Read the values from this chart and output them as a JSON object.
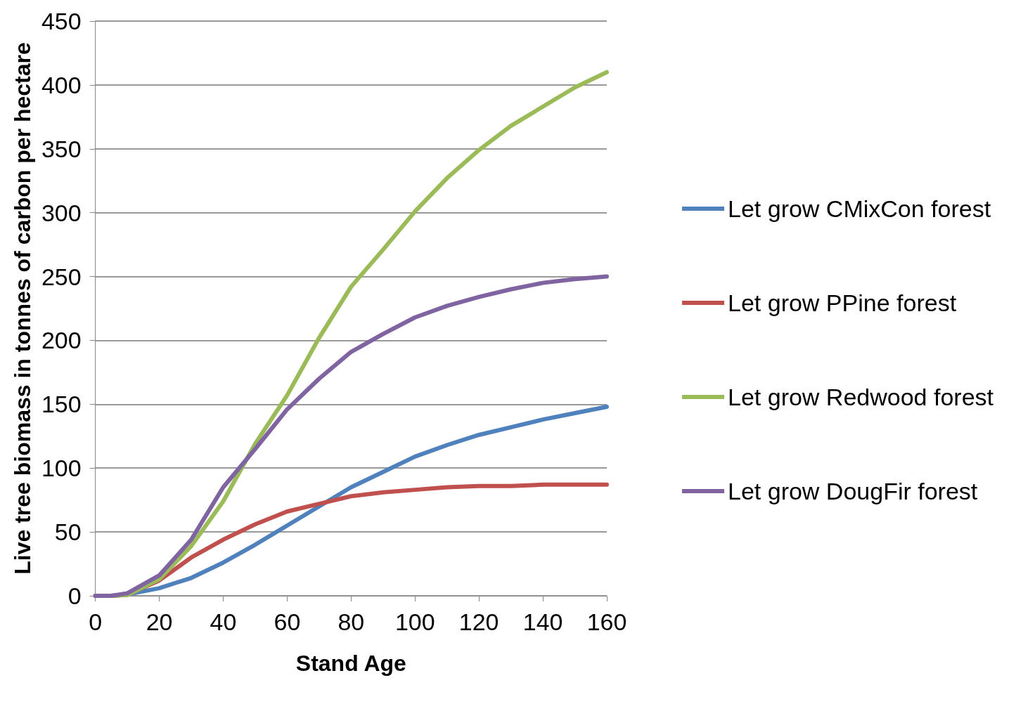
{
  "chart_data": {
    "type": "line",
    "xlabel": "Stand Age",
    "ylabel": "Live tree biomass in tonnes of carbon per hectare",
    "x": [
      0,
      5,
      10,
      20,
      30,
      40,
      50,
      60,
      70,
      80,
      90,
      100,
      110,
      120,
      130,
      140,
      150,
      160
    ],
    "series": [
      {
        "name": "Let grow CMixCon forest",
        "color": "#4f81bd",
        "values": [
          0,
          0,
          1,
          6,
          14,
          26,
          40,
          55,
          70,
          85,
          97,
          109,
          118,
          126,
          132,
          138,
          143,
          148
        ]
      },
      {
        "name": "Let grow PPine forest",
        "color": "#c0504d",
        "values": [
          0,
          0,
          1,
          12,
          30,
          44,
          56,
          66,
          72,
          78,
          81,
          83,
          85,
          86,
          86,
          87,
          87,
          87
        ]
      },
      {
        "name": "Let grow Redwood forest",
        "color": "#9bbb59",
        "values": [
          0,
          0,
          0.5,
          13,
          39,
          74,
          119,
          157,
          202,
          242,
          271,
          301,
          327,
          349,
          368,
          383,
          398,
          410
        ]
      },
      {
        "name": "Let grow DougFir forest",
        "color": "#8064a2",
        "values": [
          0,
          0,
          2,
          16,
          44,
          85,
          115,
          146,
          170,
          191,
          205,
          218,
          227,
          234,
          240,
          245,
          248,
          250
        ]
      }
    ],
    "xlim": [
      0,
      160
    ],
    "xticks": [
      0,
      20,
      40,
      60,
      80,
      100,
      120,
      140,
      160
    ],
    "ylim": [
      0,
      450
    ],
    "yticks": [
      0,
      50,
      100,
      150,
      200,
      250,
      300,
      350,
      400,
      450
    ],
    "grid": "y",
    "legend": "right",
    "marker": "none",
    "line_style": "solid"
  }
}
